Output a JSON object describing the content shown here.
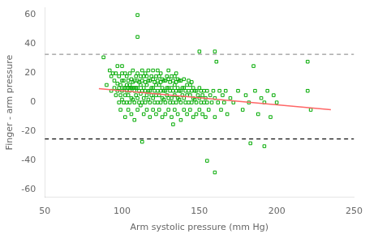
{
  "chart_data": {
    "type": "scatter",
    "xlabel": "Arm systolic pressure (mm Hg)",
    "ylabel": "Finger - arm pressure",
    "xlim": [
      50,
      250
    ],
    "ylim": [
      -65,
      65
    ],
    "xticks": [
      50,
      100,
      150,
      200,
      250
    ],
    "yticks": [
      -60,
      -40,
      -20,
      0,
      20,
      40,
      60
    ],
    "grid": false,
    "series": [
      {
        "type": "scatter",
        "color": "#00aa00",
        "marker": "square",
        "x": [
          88,
          90,
          92,
          93,
          93,
          94,
          95,
          95,
          96,
          96,
          97,
          97,
          97,
          98,
          98,
          98,
          99,
          99,
          99,
          100,
          100,
          100,
          100,
          100,
          101,
          101,
          101,
          102,
          102,
          102,
          102,
          103,
          103,
          103,
          103,
          104,
          104,
          104,
          104,
          105,
          105,
          105,
          105,
          106,
          106,
          106,
          106,
          107,
          107,
          107,
          107,
          108,
          108,
          108,
          108,
          109,
          109,
          109,
          110,
          110,
          110,
          110,
          110,
          110,
          111,
          111,
          111,
          112,
          112,
          112,
          112,
          113,
          113,
          113,
          113,
          114,
          114,
          114,
          114,
          115,
          115,
          115,
          115,
          116,
          116,
          116,
          116,
          117,
          117,
          117,
          117,
          118,
          118,
          118,
          118,
          119,
          119,
          119,
          120,
          120,
          120,
          120,
          120,
          121,
          121,
          121,
          122,
          122,
          122,
          122,
          123,
          123,
          123,
          123,
          124,
          124,
          124,
          124,
          125,
          125,
          125,
          125,
          126,
          126,
          126,
          126,
          127,
          127,
          127,
          128,
          128,
          128,
          128,
          129,
          129,
          129,
          130,
          130,
          130,
          130,
          130,
          131,
          131,
          131,
          132,
          132,
          132,
          132,
          133,
          133,
          133,
          133,
          134,
          134,
          134,
          134,
          135,
          135,
          135,
          135,
          136,
          136,
          136,
          136,
          137,
          137,
          137,
          138,
          138,
          138,
          138,
          139,
          139,
          140,
          140,
          140,
          140,
          141,
          141,
          142,
          142,
          142,
          143,
          143,
          143,
          144,
          144,
          144,
          145,
          145,
          145,
          146,
          146,
          146,
          147,
          147,
          148,
          148,
          148,
          149,
          150,
          150,
          150,
          151,
          151,
          152,
          152,
          153,
          153,
          154,
          154,
          155,
          155,
          156,
          157,
          158,
          159,
          160,
          160,
          161,
          162,
          163,
          164,
          165,
          166,
          167,
          168,
          170,
          172,
          175,
          178,
          180,
          182,
          183,
          185,
          186,
          188,
          190,
          192,
          194,
          196,
          198,
          200,
          110,
          113,
          160,
          155,
          160,
          220,
          220,
          222,
          105,
          108,
          150,
          192
        ],
        "values": [
          31,
          12,
          22,
          8,
          18,
          20,
          10,
          15,
          5,
          20,
          8,
          13,
          25,
          0,
          10,
          18,
          -5,
          5,
          12,
          2,
          8,
          15,
          20,
          25,
          0,
          10,
          15,
          -10,
          5,
          10,
          20,
          0,
          8,
          12,
          18,
          -5,
          5,
          10,
          15,
          0,
          8,
          12,
          20,
          -8,
          3,
          10,
          16,
          2,
          10,
          14,
          22,
          -12,
          0,
          8,
          15,
          5,
          10,
          18,
          -5,
          3,
          10,
          15,
          20,
          60,
          0,
          8,
          14,
          -2,
          6,
          12,
          18,
          0,
          8,
          15,
          22,
          -8,
          3,
          10,
          18,
          0,
          8,
          14,
          20,
          -5,
          5,
          12,
          18,
          2,
          8,
          15,
          22,
          -10,
          0,
          8,
          15,
          5,
          10,
          18,
          -5,
          3,
          10,
          16,
          22,
          0,
          8,
          14,
          -8,
          5,
          12,
          18,
          0,
          8,
          15,
          22,
          -5,
          5,
          12,
          18,
          0,
          8,
          14,
          20,
          -10,
          3,
          10,
          16,
          2,
          8,
          15,
          -8,
          0,
          8,
          15,
          5,
          10,
          18,
          -5,
          3,
          10,
          16,
          22,
          0,
          8,
          14,
          -10,
          3,
          10,
          18,
          -15,
          0,
          8,
          15,
          -5,
          5,
          12,
          18,
          0,
          8,
          14,
          20,
          -8,
          3,
          10,
          16,
          2,
          8,
          15,
          -12,
          0,
          8,
          15,
          5,
          10,
          -5,
          3,
          10,
          16,
          0,
          8,
          -8,
          5,
          12,
          0,
          8,
          15,
          -5,
          5,
          12,
          0,
          8,
          14,
          -10,
          3,
          10,
          2,
          8,
          -8,
          0,
          8,
          5,
          -5,
          3,
          10,
          0,
          8,
          -8,
          5,
          0,
          8,
          -10,
          3,
          0,
          8,
          -5,
          5,
          0,
          8,
          -10,
          3,
          28,
          0,
          8,
          -5,
          5,
          0,
          8,
          -8,
          3,
          0,
          8,
          -5,
          5,
          0,
          -28,
          25,
          8,
          -8,
          3,
          0,
          8,
          -10,
          5,
          0,
          45,
          -27,
          35,
          -40,
          -48,
          8,
          28,
          -5,
          10,
          10,
          35,
          -30
        ]
      },
      {
        "type": "line",
        "color": "#ff6666",
        "line_style": "solid",
        "x": [
          85,
          235
        ],
        "values": [
          9.5,
          -5.0
        ]
      }
    ],
    "hlines": [
      {
        "value": 33.0,
        "color": "#999999",
        "line_style": "dashed"
      },
      {
        "value": -25.0,
        "color": "#111111",
        "line_style": "dashed"
      }
    ]
  }
}
